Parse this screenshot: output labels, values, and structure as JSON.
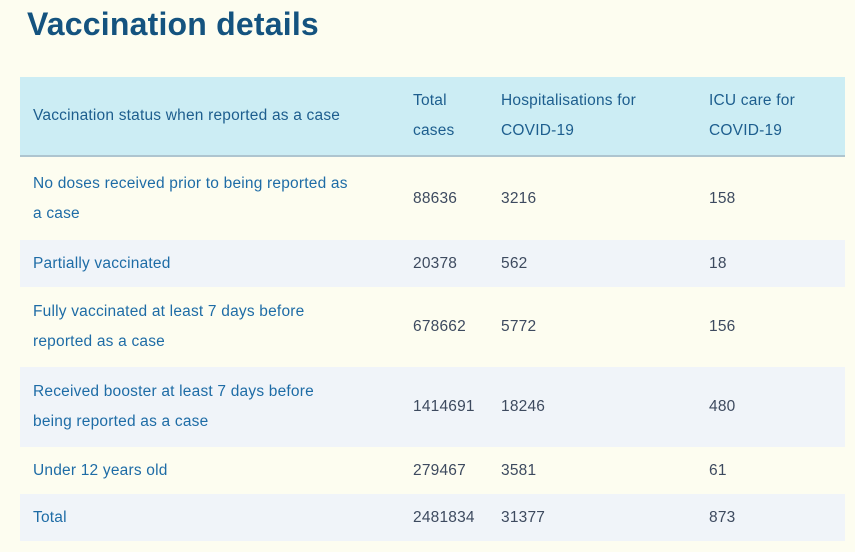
{
  "page": {
    "title": "Vaccination details"
  },
  "colors": {
    "page_background": "#FDFDF0",
    "title_text": "#14537F",
    "header_background": "#CCEDF4",
    "header_text": "#1D5E8E",
    "header_border": "#AEC5CF",
    "status_label_text": "#1E6CA6",
    "value_text": "#3D4A5F",
    "stripe_background": "#F0F4F9"
  },
  "table": {
    "header": {
      "status": "Vaccination status when reported as a case",
      "total_cases": "Total\ncases",
      "hospitalisations": "Hospitalisations for\nCOVID-19",
      "icu": "ICU care for\nCOVID-19"
    },
    "rows": [
      {
        "status": "No doses received prior to being reported as\na case",
        "total_cases": "88636",
        "hospitalisations": "3216",
        "icu": "158"
      },
      {
        "status": "Partially vaccinated",
        "total_cases": "20378",
        "hospitalisations": "562",
        "icu": "18"
      },
      {
        "status": "Fully vaccinated at least 7 days before\nreported as a case",
        "total_cases": "678662",
        "hospitalisations": "5772",
        "icu": "156"
      },
      {
        "status": "Received booster at least 7 days before\nbeing reported as a case",
        "total_cases": "1414691",
        "hospitalisations": "18246",
        "icu": "480"
      },
      {
        "status": "Under 12 years old",
        "total_cases": "279467",
        "hospitalisations": "3581",
        "icu": "61"
      },
      {
        "status": "Total",
        "total_cases": "2481834",
        "hospitalisations": "31377",
        "icu": "873"
      }
    ]
  }
}
